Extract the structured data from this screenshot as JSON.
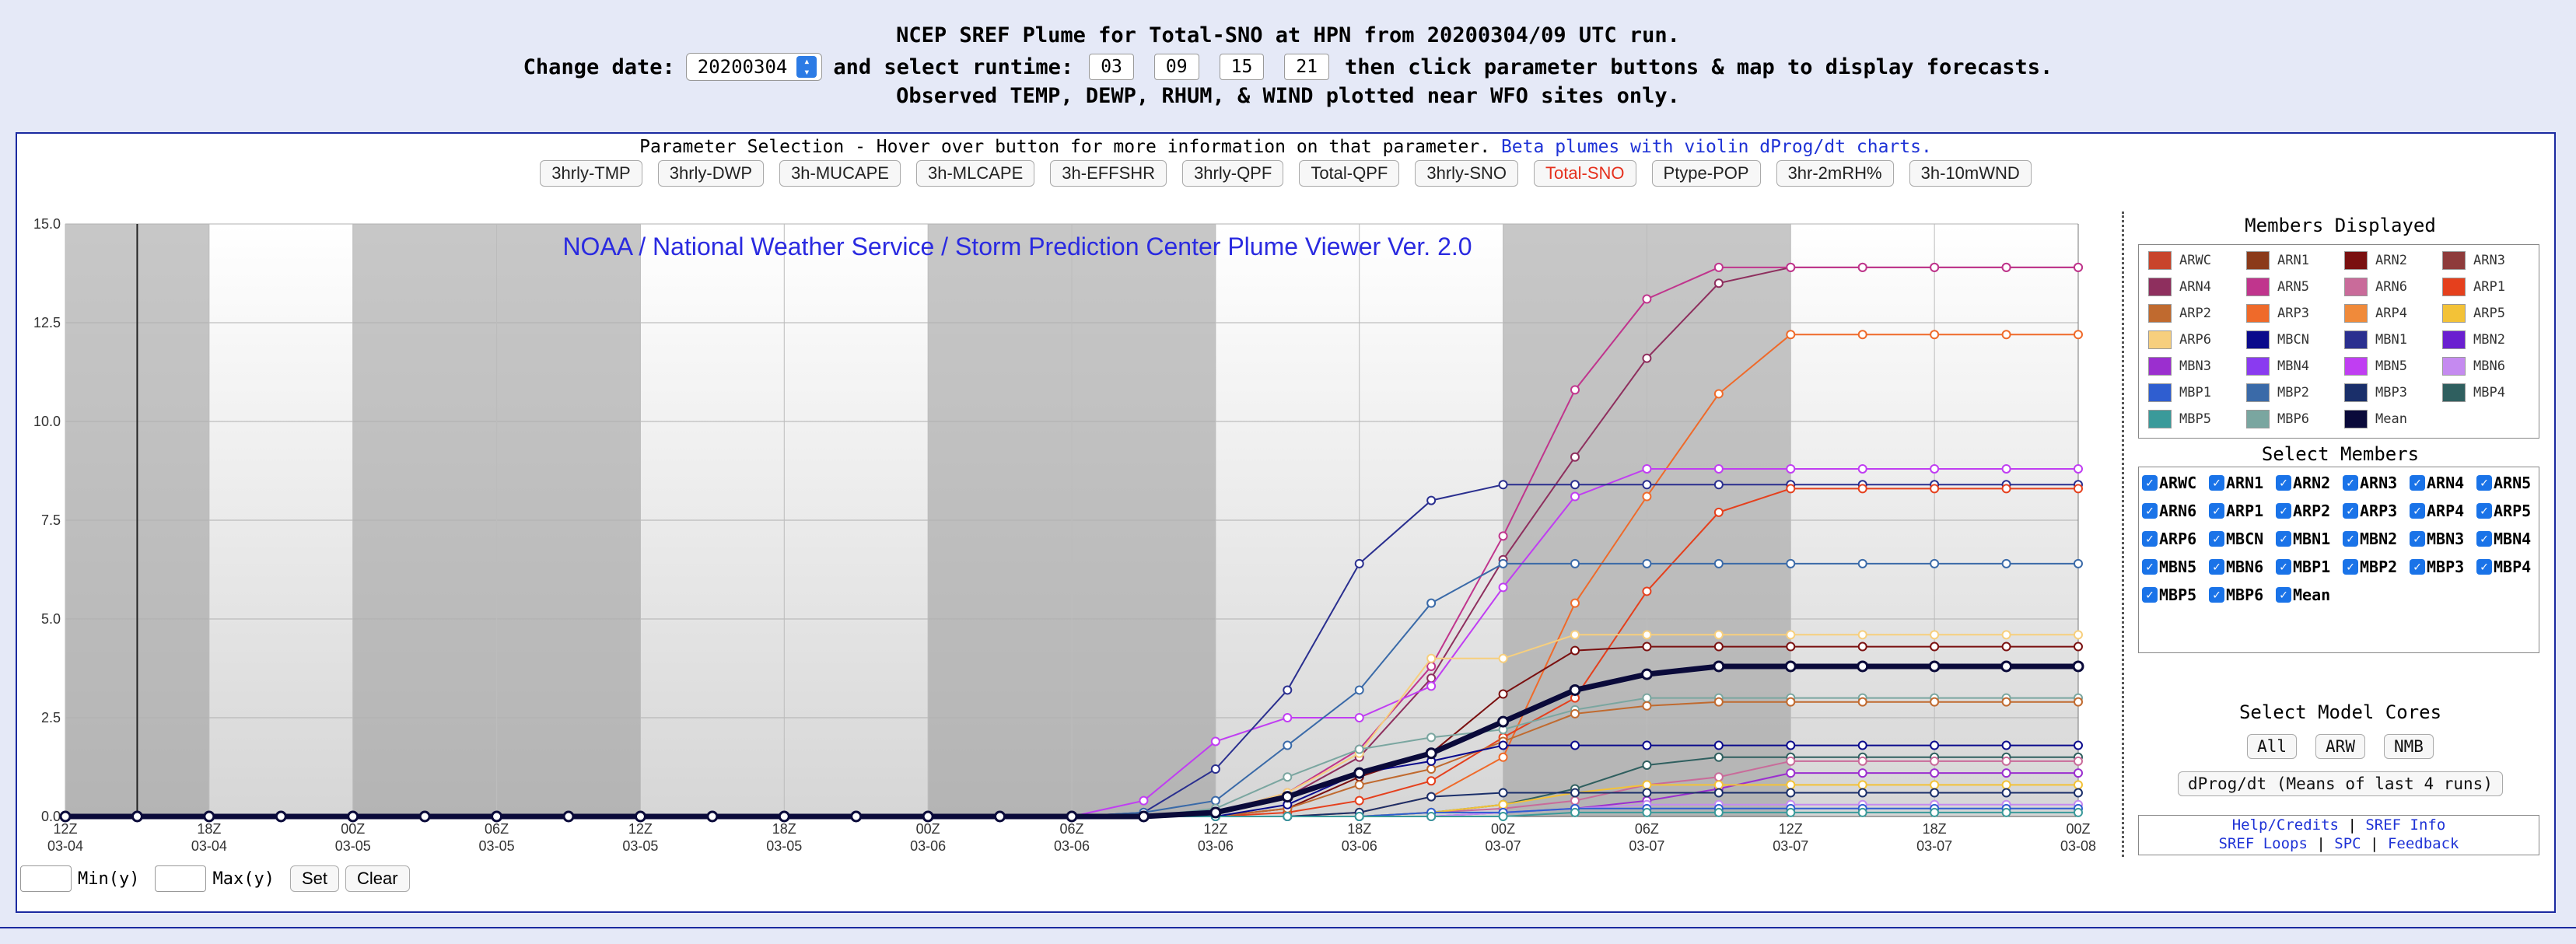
{
  "header": {
    "title": "NCEP SREF Plume for Total-SNO at HPN from 20200304/09 UTC run.",
    "change_date_label": "Change date:",
    "date_value": "20200304",
    "runtime_label": "and select runtime:",
    "runtimes": [
      "03",
      "09",
      "15",
      "21"
    ],
    "tail_text": "then click parameter buttons & map to display forecasts.",
    "observed_note": "Observed TEMP, DEWP, RHUM, & WIND plotted near WFO sites only."
  },
  "params": {
    "title": "Parameter Selection - Hover over button for more information on that parameter.",
    "beta_link": "Beta plumes with violin dProg/dt charts.",
    "buttons": [
      "3hrly-TMP",
      "3hrly-DWP",
      "3h-MUCAPE",
      "3h-MLCAPE",
      "3h-EFFSHR",
      "3hrly-QPF",
      "Total-QPF",
      "3hrly-SNO",
      "Total-SNO",
      "Ptype-POP",
      "3hr-2mRH%",
      "3h-10mWND"
    ],
    "active": "Total-SNO",
    "active_color": "#e5301d"
  },
  "side": {
    "members_title": "Members Displayed",
    "members": [
      {
        "name": "ARWC",
        "color": "#c8442b"
      },
      {
        "name": "ARN1",
        "color": "#8b3a1a"
      },
      {
        "name": "ARN2",
        "color": "#7a1010"
      },
      {
        "name": "ARN3",
        "color": "#8e3b3b"
      },
      {
        "name": "ARN4",
        "color": "#8e2f5e"
      },
      {
        "name": "ARN5",
        "color": "#c0358d"
      },
      {
        "name": "ARN6",
        "color": "#c96b9a"
      },
      {
        "name": "ARP1",
        "color": "#e5401d"
      },
      {
        "name": "ARP2",
        "color": "#c06a2f"
      },
      {
        "name": "ARP3",
        "color": "#ef6a2a"
      },
      {
        "name": "ARP4",
        "color": "#f08a3a"
      },
      {
        "name": "ARP5",
        "color": "#f3c237"
      },
      {
        "name": "ARP6",
        "color": "#f7cf7d"
      },
      {
        "name": "MBCN",
        "color": "#0a0a8c"
      },
      {
        "name": "MBN1",
        "color": "#2a2f8f"
      },
      {
        "name": "MBN2",
        "color": "#6a1fd0"
      },
      {
        "name": "MBN3",
        "color": "#9b2fcf"
      },
      {
        "name": "MBN4",
        "color": "#8a3bf0"
      },
      {
        "name": "MBN5",
        "color": "#c03ef2"
      },
      {
        "name": "MBN6",
        "color": "#c58af0"
      },
      {
        "name": "MBP1",
        "color": "#2f5ed0"
      },
      {
        "name": "MBP2",
        "color": "#3a6aa8"
      },
      {
        "name": "MBP3",
        "color": "#1a2f6a"
      },
      {
        "name": "MBP4",
        "color": "#2f5f5f"
      },
      {
        "name": "MBP5",
        "color": "#3a9a9a"
      },
      {
        "name": "MBP6",
        "color": "#7aa6a0"
      },
      {
        "name": "Mean",
        "color": "#0a0a3a"
      }
    ],
    "select_title": "Select Members",
    "select": [
      "ARWC",
      "ARN1",
      "ARN2",
      "ARN3",
      "ARN4",
      "ARN5",
      "ARN6",
      "ARP1",
      "ARP2",
      "ARP3",
      "ARP4",
      "ARP5",
      "ARP6",
      "MBCN",
      "MBN1",
      "MBN2",
      "MBN3",
      "MBN4",
      "MBN5",
      "MBN6",
      "MBP1",
      "MBP2",
      "MBP3",
      "MBP4",
      "MBP5",
      "MBP6",
      "Mean"
    ],
    "cores_title": "Select Model Cores",
    "cores": [
      "All",
      "ARW",
      "NMB"
    ],
    "dprog_label": "dProg/dt (Means of last 4 runs)",
    "links": [
      "Help/Credits",
      "SREF Info",
      "SREF Loops",
      "SPC",
      "Feedback"
    ]
  },
  "bottom": {
    "min_label": "Min(y)",
    "max_label": "Max(y)",
    "set_label": "Set",
    "clear_label": "Clear"
  },
  "chart_data": {
    "type": "line",
    "title": "NOAA / National Weather Service / Storm Prediction Center Plume Viewer Ver. 2.0",
    "title_color": "#2a2ae0",
    "ylim": [
      0,
      15
    ],
    "yticks": [
      "0.0",
      "2.5",
      "5.0",
      "7.5",
      "10.0",
      "12.5",
      "15.0"
    ],
    "xticks": [
      {
        "hour": "12Z",
        "date": "03-04"
      },
      {
        "hour": "18Z",
        "date": "03-04"
      },
      {
        "hour": "00Z",
        "date": "03-05"
      },
      {
        "hour": "06Z",
        "date": "03-05"
      },
      {
        "hour": "12Z",
        "date": "03-05"
      },
      {
        "hour": "18Z",
        "date": "03-05"
      },
      {
        "hour": "00Z",
        "date": "03-06"
      },
      {
        "hour": "06Z",
        "date": "03-06"
      },
      {
        "hour": "12Z",
        "date": "03-06"
      },
      {
        "hour": "18Z",
        "date": "03-06"
      },
      {
        "hour": "00Z",
        "date": "03-07"
      },
      {
        "hour": "06Z",
        "date": "03-07"
      },
      {
        "hour": "12Z",
        "date": "03-07"
      },
      {
        "hour": "18Z",
        "date": "03-07"
      },
      {
        "hour": "00Z",
        "date": "03-08"
      }
    ],
    "x_hours": [
      0,
      3,
      6,
      9,
      12,
      15,
      18,
      21,
      24,
      27,
      30,
      33,
      36,
      39,
      42,
      45,
      48,
      51,
      54,
      57,
      60,
      63,
      66,
      69,
      72,
      75,
      78,
      81,
      84
    ],
    "shaded_hour_ranges": [
      [
        0,
        6
      ],
      [
        12,
        24
      ],
      [
        36,
        48
      ],
      [
        60,
        72
      ]
    ],
    "run_marker_hour": 3,
    "series": [
      {
        "name": "ARN4",
        "color": "#8e2f5e",
        "width": 2,
        "values": [
          0,
          0,
          0,
          0,
          0,
          0,
          0,
          0,
          0,
          0,
          0,
          0,
          0,
          0,
          0,
          0,
          0.1,
          0.5,
          1.5,
          3.5,
          6.5,
          9.1,
          11.6,
          13.5,
          13.9,
          13.9,
          13.9,
          13.9,
          13.9
        ]
      },
      {
        "name": "ARN5",
        "color": "#c0358d",
        "width": 2,
        "values": [
          0,
          0,
          0,
          0,
          0,
          0,
          0,
          0,
          0,
          0,
          0,
          0,
          0,
          0,
          0,
          0,
          0.1,
          0.6,
          1.7,
          3.8,
          7.1,
          10.8,
          13.1,
          13.9,
          13.9,
          13.9,
          13.9,
          13.9,
          13.9
        ]
      },
      {
        "name": "ARP3",
        "color": "#ef6a2a",
        "width": 2,
        "values": [
          0,
          0,
          0,
          0,
          0,
          0,
          0,
          0,
          0,
          0,
          0,
          0,
          0,
          0,
          0,
          0,
          0,
          0,
          0.1,
          0.5,
          1.5,
          5.4,
          8.1,
          10.7,
          12.2,
          12.2,
          12.2,
          12.2,
          12.2
        ]
      },
      {
        "name": "MBN5",
        "color": "#c03ef2",
        "width": 2,
        "values": [
          0,
          0,
          0,
          0,
          0,
          0,
          0,
          0,
          0,
          0,
          0,
          0,
          0,
          0,
          0,
          0.4,
          1.9,
          2.5,
          2.5,
          3.3,
          5.8,
          8.1,
          8.8,
          8.8,
          8.8,
          8.8,
          8.8,
          8.8,
          8.8
        ]
      },
      {
        "name": "MBN1",
        "color": "#2a2f8f",
        "width": 2,
        "values": [
          0,
          0,
          0,
          0,
          0,
          0,
          0,
          0,
          0,
          0,
          0,
          0,
          0,
          0,
          0,
          0.1,
          1.2,
          3.2,
          6.4,
          8.0,
          8.4,
          8.4,
          8.4,
          8.4,
          8.4,
          8.4,
          8.4,
          8.4,
          8.4
        ]
      },
      {
        "name": "ARP1",
        "color": "#e5401d",
        "width": 2,
        "values": [
          0,
          0,
          0,
          0,
          0,
          0,
          0,
          0,
          0,
          0,
          0,
          0,
          0,
          0,
          0,
          0,
          0,
          0.1,
          0.4,
          0.9,
          2.0,
          3.0,
          5.7,
          7.7,
          8.3,
          8.3,
          8.3,
          8.3,
          8.3
        ]
      },
      {
        "name": "MBP2",
        "color": "#3a6aa8",
        "width": 2,
        "values": [
          0,
          0,
          0,
          0,
          0,
          0,
          0,
          0,
          0,
          0,
          0,
          0,
          0,
          0,
          0,
          0.1,
          0.4,
          1.8,
          3.2,
          5.4,
          6.4,
          6.4,
          6.4,
          6.4,
          6.4,
          6.4,
          6.4,
          6.4,
          6.4
        ]
      },
      {
        "name": "ARP6",
        "color": "#f7cf7d",
        "width": 2,
        "values": [
          0,
          0,
          0,
          0,
          0,
          0,
          0,
          0,
          0,
          0,
          0,
          0,
          0,
          0,
          0,
          0,
          0.1,
          0.6,
          1.6,
          4.0,
          4.0,
          4.6,
          4.6,
          4.6,
          4.6,
          4.6,
          4.6,
          4.6,
          4.6
        ]
      },
      {
        "name": "ARN2",
        "color": "#7a1010",
        "width": 2,
        "values": [
          0,
          0,
          0,
          0,
          0,
          0,
          0,
          0,
          0,
          0,
          0,
          0,
          0,
          0,
          0,
          0,
          0,
          0.2,
          1.0,
          1.6,
          3.1,
          4.2,
          4.3,
          4.3,
          4.3,
          4.3,
          4.3,
          4.3,
          4.3
        ]
      },
      {
        "name": "MBP6",
        "color": "#7aa6a0",
        "width": 2,
        "values": [
          0,
          0,
          0,
          0,
          0,
          0,
          0,
          0,
          0,
          0,
          0,
          0,
          0,
          0,
          0,
          0,
          0.2,
          1.0,
          1.7,
          2.0,
          2.2,
          2.7,
          3.0,
          3.0,
          3.0,
          3.0,
          3.0,
          3.0,
          3.0
        ]
      },
      {
        "name": "ARP2",
        "color": "#c06a2f",
        "width": 2,
        "values": [
          0,
          0,
          0,
          0,
          0,
          0,
          0,
          0,
          0,
          0,
          0,
          0,
          0,
          0,
          0,
          0,
          0,
          0.2,
          0.8,
          1.2,
          1.9,
          2.6,
          2.8,
          2.9,
          2.9,
          2.9,
          2.9,
          2.9,
          2.9
        ]
      },
      {
        "name": "MBCN",
        "color": "#0a0a8c",
        "width": 2,
        "values": [
          0,
          0,
          0,
          0,
          0,
          0,
          0,
          0,
          0,
          0,
          0,
          0,
          0,
          0,
          0,
          0,
          0,
          0.3,
          1.1,
          1.4,
          1.8,
          1.8,
          1.8,
          1.8,
          1.8,
          1.8,
          1.8,
          1.8,
          1.8
        ]
      },
      {
        "name": "MBP4",
        "color": "#2f5f5f",
        "width": 2,
        "values": [
          0,
          0,
          0,
          0,
          0,
          0,
          0,
          0,
          0,
          0,
          0,
          0,
          0,
          0,
          0,
          0,
          0,
          0,
          0,
          0.1,
          0.3,
          0.7,
          1.3,
          1.5,
          1.5,
          1.5,
          1.5,
          1.5,
          1.5
        ]
      },
      {
        "name": "ARN6",
        "color": "#c96b9a",
        "width": 2,
        "values": [
          0,
          0,
          0,
          0,
          0,
          0,
          0,
          0,
          0,
          0,
          0,
          0,
          0,
          0,
          0,
          0,
          0,
          0,
          0,
          0.1,
          0.2,
          0.4,
          0.8,
          1.0,
          1.4,
          1.4,
          1.4,
          1.4,
          1.4
        ]
      },
      {
        "name": "MBN3",
        "color": "#9b2fcf",
        "width": 2,
        "values": [
          0,
          0,
          0,
          0,
          0,
          0,
          0,
          0,
          0,
          0,
          0,
          0,
          0,
          0,
          0,
          0,
          0,
          0,
          0,
          0,
          0.1,
          0.2,
          0.4,
          0.7,
          1.1,
          1.1,
          1.1,
          1.1,
          1.1
        ]
      },
      {
        "name": "ARP5",
        "color": "#f3c237",
        "width": 2,
        "values": [
          0,
          0,
          0,
          0,
          0,
          0,
          0,
          0,
          0,
          0,
          0,
          0,
          0,
          0,
          0,
          0,
          0,
          0,
          0,
          0.1,
          0.3,
          0.6,
          0.8,
          0.8,
          0.8,
          0.8,
          0.8,
          0.8,
          0.8
        ]
      },
      {
        "name": "MBP3",
        "color": "#1a2f6a",
        "width": 2,
        "values": [
          0,
          0,
          0,
          0,
          0,
          0,
          0,
          0,
          0,
          0,
          0,
          0,
          0,
          0,
          0,
          0,
          0,
          0,
          0.1,
          0.5,
          0.6,
          0.6,
          0.6,
          0.6,
          0.6,
          0.6,
          0.6,
          0.6,
          0.6
        ]
      },
      {
        "name": "MBN6",
        "color": "#c58af0",
        "width": 2,
        "values": [
          0,
          0,
          0,
          0,
          0,
          0,
          0,
          0,
          0,
          0,
          0,
          0,
          0,
          0,
          0,
          0,
          0,
          0,
          0,
          0,
          0.1,
          0.2,
          0.3,
          0.3,
          0.3,
          0.3,
          0.3,
          0.3,
          0.3
        ]
      },
      {
        "name": "MBP1",
        "color": "#2f5ed0",
        "width": 2,
        "values": [
          0,
          0,
          0,
          0,
          0,
          0,
          0,
          0,
          0,
          0,
          0,
          0,
          0,
          0,
          0,
          0,
          0,
          0,
          0,
          0.1,
          0.1,
          0.2,
          0.2,
          0.2,
          0.2,
          0.2,
          0.2,
          0.2,
          0.2
        ]
      },
      {
        "name": "MBP5",
        "color": "#3a9a9a",
        "width": 2,
        "values": [
          0,
          0,
          0,
          0,
          0,
          0,
          0,
          0,
          0,
          0,
          0,
          0,
          0,
          0,
          0,
          0,
          0,
          0,
          0,
          0,
          0,
          0.1,
          0.1,
          0.1,
          0.1,
          0.1,
          0.1,
          0.1,
          0.1
        ]
      },
      {
        "name": "Mean",
        "color": "#0a0a3a",
        "width": 7,
        "values": [
          0,
          0,
          0,
          0,
          0,
          0,
          0,
          0,
          0,
          0,
          0,
          0,
          0,
          0,
          0,
          0,
          0.1,
          0.5,
          1.1,
          1.6,
          2.4,
          3.2,
          3.6,
          3.8,
          3.8,
          3.8,
          3.8,
          3.8,
          3.8
        ]
      }
    ]
  }
}
